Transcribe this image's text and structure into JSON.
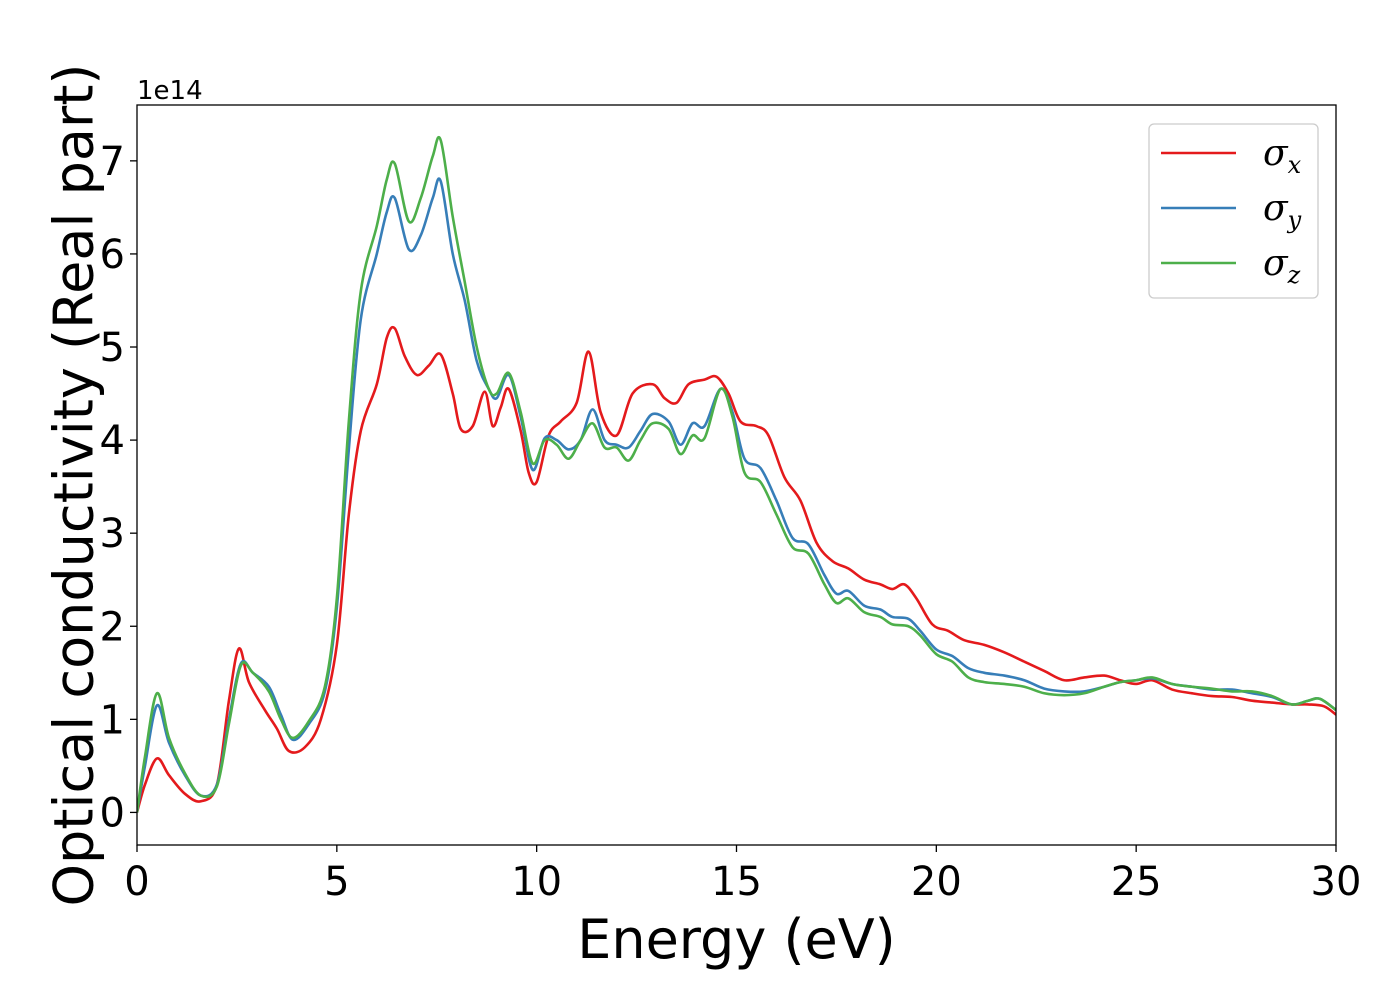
{
  "chart_data": {
    "type": "line",
    "title": "",
    "xlabel": "Energy (eV)",
    "ylabel": "Optical conductivity (Real part)",
    "y_offset_label": "1e14",
    "xlim": [
      0,
      30
    ],
    "ylim": [
      -0.35,
      7.6
    ],
    "xticks": [
      0,
      5,
      10,
      15,
      20,
      25,
      30
    ],
    "xtick_labels": [
      "0",
      "5",
      "10",
      "15",
      "20",
      "25",
      "30"
    ],
    "yticks": [
      0,
      1,
      2,
      3,
      4,
      5,
      6,
      7
    ],
    "ytick_labels": [
      "0",
      "1",
      "2",
      "3",
      "4",
      "5",
      "6",
      "7"
    ],
    "grid": false,
    "legend_position": "top-right",
    "series": [
      {
        "name": "σx",
        "symbol": "σ",
        "subscript": "x",
        "color": "#e41a1c",
        "points": [
          [
            0,
            0
          ],
          [
            0.2,
            0.3
          ],
          [
            0.5,
            0.58
          ],
          [
            0.8,
            0.4
          ],
          [
            1.2,
            0.2
          ],
          [
            1.6,
            0.12
          ],
          [
            2.0,
            0.3
          ],
          [
            2.3,
            1.2
          ],
          [
            2.55,
            1.76
          ],
          [
            2.8,
            1.4
          ],
          [
            3.2,
            1.1
          ],
          [
            3.5,
            0.9
          ],
          [
            3.8,
            0.66
          ],
          [
            4.2,
            0.7
          ],
          [
            4.6,
            1.0
          ],
          [
            5.0,
            1.8
          ],
          [
            5.3,
            3.2
          ],
          [
            5.6,
            4.1
          ],
          [
            6.0,
            4.6
          ],
          [
            6.25,
            5.1
          ],
          [
            6.45,
            5.2
          ],
          [
            6.7,
            4.9
          ],
          [
            7.0,
            4.7
          ],
          [
            7.3,
            4.8
          ],
          [
            7.6,
            4.92
          ],
          [
            7.9,
            4.5
          ],
          [
            8.1,
            4.12
          ],
          [
            8.4,
            4.15
          ],
          [
            8.7,
            4.52
          ],
          [
            8.9,
            4.15
          ],
          [
            9.1,
            4.35
          ],
          [
            9.3,
            4.55
          ],
          [
            9.6,
            4.1
          ],
          [
            9.8,
            3.65
          ],
          [
            10.0,
            3.55
          ],
          [
            10.3,
            4.05
          ],
          [
            10.6,
            4.2
          ],
          [
            11.0,
            4.4
          ],
          [
            11.3,
            4.95
          ],
          [
            11.6,
            4.3
          ],
          [
            12.0,
            4.05
          ],
          [
            12.4,
            4.5
          ],
          [
            12.9,
            4.6
          ],
          [
            13.2,
            4.45
          ],
          [
            13.5,
            4.4
          ],
          [
            13.8,
            4.6
          ],
          [
            14.2,
            4.65
          ],
          [
            14.5,
            4.68
          ],
          [
            14.8,
            4.5
          ],
          [
            15.1,
            4.2
          ],
          [
            15.5,
            4.15
          ],
          [
            15.8,
            4.05
          ],
          [
            16.2,
            3.6
          ],
          [
            16.6,
            3.35
          ],
          [
            17.0,
            2.9
          ],
          [
            17.4,
            2.7
          ],
          [
            17.8,
            2.62
          ],
          [
            18.2,
            2.5
          ],
          [
            18.6,
            2.45
          ],
          [
            18.9,
            2.4
          ],
          [
            19.2,
            2.45
          ],
          [
            19.5,
            2.3
          ],
          [
            19.9,
            2.02
          ],
          [
            20.3,
            1.95
          ],
          [
            20.7,
            1.85
          ],
          [
            21.2,
            1.8
          ],
          [
            21.7,
            1.72
          ],
          [
            22.2,
            1.62
          ],
          [
            22.7,
            1.52
          ],
          [
            23.2,
            1.42
          ],
          [
            23.7,
            1.45
          ],
          [
            24.2,
            1.47
          ],
          [
            24.6,
            1.42
          ],
          [
            25.0,
            1.38
          ],
          [
            25.4,
            1.42
          ],
          [
            25.9,
            1.32
          ],
          [
            26.4,
            1.28
          ],
          [
            26.9,
            1.25
          ],
          [
            27.4,
            1.24
          ],
          [
            27.9,
            1.2
          ],
          [
            28.4,
            1.18
          ],
          [
            28.9,
            1.16
          ],
          [
            29.3,
            1.16
          ],
          [
            29.7,
            1.14
          ],
          [
            30.0,
            1.05
          ]
        ]
      },
      {
        "name": "σy",
        "symbol": "σ",
        "subscript": "y",
        "color": "#377eb8",
        "points": [
          [
            0,
            0
          ],
          [
            0.2,
            0.5
          ],
          [
            0.5,
            1.15
          ],
          [
            0.8,
            0.75
          ],
          [
            1.2,
            0.4
          ],
          [
            1.6,
            0.18
          ],
          [
            2.0,
            0.3
          ],
          [
            2.3,
            1.0
          ],
          [
            2.6,
            1.6
          ],
          [
            2.9,
            1.5
          ],
          [
            3.3,
            1.35
          ],
          [
            3.6,
            1.05
          ],
          [
            3.9,
            0.78
          ],
          [
            4.3,
            0.95
          ],
          [
            4.7,
            1.3
          ],
          [
            5.0,
            2.2
          ],
          [
            5.3,
            3.9
          ],
          [
            5.6,
            5.3
          ],
          [
            6.0,
            6.0
          ],
          [
            6.25,
            6.45
          ],
          [
            6.45,
            6.6
          ],
          [
            6.8,
            6.05
          ],
          [
            7.1,
            6.2
          ],
          [
            7.4,
            6.6
          ],
          [
            7.6,
            6.78
          ],
          [
            7.9,
            6.0
          ],
          [
            8.2,
            5.5
          ],
          [
            8.5,
            4.85
          ],
          [
            8.8,
            4.55
          ],
          [
            9.0,
            4.45
          ],
          [
            9.3,
            4.7
          ],
          [
            9.6,
            4.25
          ],
          [
            9.9,
            3.68
          ],
          [
            10.2,
            4.02
          ],
          [
            10.5,
            4.0
          ],
          [
            10.8,
            3.9
          ],
          [
            11.1,
            4.0
          ],
          [
            11.4,
            4.33
          ],
          [
            11.7,
            4.0
          ],
          [
            12.0,
            3.95
          ],
          [
            12.3,
            3.92
          ],
          [
            12.6,
            4.1
          ],
          [
            12.9,
            4.28
          ],
          [
            13.3,
            4.2
          ],
          [
            13.6,
            3.95
          ],
          [
            13.9,
            4.18
          ],
          [
            14.2,
            4.15
          ],
          [
            14.6,
            4.55
          ],
          [
            14.9,
            4.3
          ],
          [
            15.2,
            3.8
          ],
          [
            15.6,
            3.7
          ],
          [
            16.0,
            3.35
          ],
          [
            16.4,
            2.95
          ],
          [
            16.8,
            2.88
          ],
          [
            17.2,
            2.55
          ],
          [
            17.5,
            2.35
          ],
          [
            17.8,
            2.38
          ],
          [
            18.2,
            2.22
          ],
          [
            18.6,
            2.18
          ],
          [
            18.9,
            2.1
          ],
          [
            19.3,
            2.08
          ],
          [
            19.6,
            1.95
          ],
          [
            20.0,
            1.75
          ],
          [
            20.4,
            1.68
          ],
          [
            20.8,
            1.55
          ],
          [
            21.2,
            1.5
          ],
          [
            21.7,
            1.47
          ],
          [
            22.2,
            1.42
          ],
          [
            22.7,
            1.33
          ],
          [
            23.2,
            1.3
          ],
          [
            23.7,
            1.3
          ],
          [
            24.2,
            1.35
          ],
          [
            24.6,
            1.4
          ],
          [
            25.0,
            1.42
          ],
          [
            25.4,
            1.44
          ],
          [
            25.9,
            1.38
          ],
          [
            26.4,
            1.35
          ],
          [
            26.9,
            1.32
          ],
          [
            27.4,
            1.32
          ],
          [
            27.9,
            1.28
          ],
          [
            28.4,
            1.24
          ],
          [
            28.9,
            1.16
          ],
          [
            29.3,
            1.2
          ],
          [
            29.6,
            1.22
          ],
          [
            30.0,
            1.1
          ]
        ]
      },
      {
        "name": "σz",
        "symbol": "σ",
        "subscript": "z",
        "color": "#4daf4a",
        "points": [
          [
            0,
            0
          ],
          [
            0.2,
            0.6
          ],
          [
            0.5,
            1.28
          ],
          [
            0.8,
            0.8
          ],
          [
            1.2,
            0.42
          ],
          [
            1.6,
            0.18
          ],
          [
            2.0,
            0.28
          ],
          [
            2.3,
            0.95
          ],
          [
            2.6,
            1.58
          ],
          [
            2.9,
            1.5
          ],
          [
            3.3,
            1.3
          ],
          [
            3.6,
            1.0
          ],
          [
            3.9,
            0.8
          ],
          [
            4.3,
            0.98
          ],
          [
            4.7,
            1.35
          ],
          [
            5.0,
            2.3
          ],
          [
            5.3,
            4.2
          ],
          [
            5.6,
            5.6
          ],
          [
            6.0,
            6.3
          ],
          [
            6.25,
            6.8
          ],
          [
            6.45,
            6.97
          ],
          [
            6.8,
            6.35
          ],
          [
            7.1,
            6.6
          ],
          [
            7.4,
            7.05
          ],
          [
            7.6,
            7.22
          ],
          [
            7.9,
            6.4
          ],
          [
            8.2,
            5.7
          ],
          [
            8.5,
            5.0
          ],
          [
            8.8,
            4.55
          ],
          [
            9.0,
            4.5
          ],
          [
            9.3,
            4.72
          ],
          [
            9.6,
            4.3
          ],
          [
            9.9,
            3.75
          ],
          [
            10.2,
            4.0
          ],
          [
            10.5,
            3.95
          ],
          [
            10.8,
            3.8
          ],
          [
            11.1,
            4.0
          ],
          [
            11.4,
            4.18
          ],
          [
            11.7,
            3.92
          ],
          [
            12.0,
            3.92
          ],
          [
            12.3,
            3.78
          ],
          [
            12.6,
            4.0
          ],
          [
            12.9,
            4.18
          ],
          [
            13.3,
            4.12
          ],
          [
            13.6,
            3.85
          ],
          [
            13.9,
            4.05
          ],
          [
            14.2,
            4.02
          ],
          [
            14.6,
            4.55
          ],
          [
            14.9,
            4.25
          ],
          [
            15.2,
            3.65
          ],
          [
            15.6,
            3.55
          ],
          [
            16.0,
            3.2
          ],
          [
            16.4,
            2.85
          ],
          [
            16.8,
            2.78
          ],
          [
            17.2,
            2.45
          ],
          [
            17.5,
            2.25
          ],
          [
            17.8,
            2.3
          ],
          [
            18.2,
            2.15
          ],
          [
            18.6,
            2.1
          ],
          [
            18.9,
            2.02
          ],
          [
            19.3,
            2.0
          ],
          [
            19.6,
            1.9
          ],
          [
            20.0,
            1.7
          ],
          [
            20.4,
            1.62
          ],
          [
            20.8,
            1.45
          ],
          [
            21.2,
            1.4
          ],
          [
            21.7,
            1.38
          ],
          [
            22.2,
            1.35
          ],
          [
            22.7,
            1.28
          ],
          [
            23.2,
            1.26
          ],
          [
            23.7,
            1.28
          ],
          [
            24.2,
            1.35
          ],
          [
            24.6,
            1.4
          ],
          [
            25.0,
            1.42
          ],
          [
            25.4,
            1.45
          ],
          [
            25.9,
            1.38
          ],
          [
            26.4,
            1.35
          ],
          [
            26.9,
            1.33
          ],
          [
            27.4,
            1.3
          ],
          [
            27.9,
            1.3
          ],
          [
            28.4,
            1.25
          ],
          [
            28.9,
            1.16
          ],
          [
            29.3,
            1.2
          ],
          [
            29.6,
            1.22
          ],
          [
            30.0,
            1.1
          ]
        ]
      }
    ]
  }
}
